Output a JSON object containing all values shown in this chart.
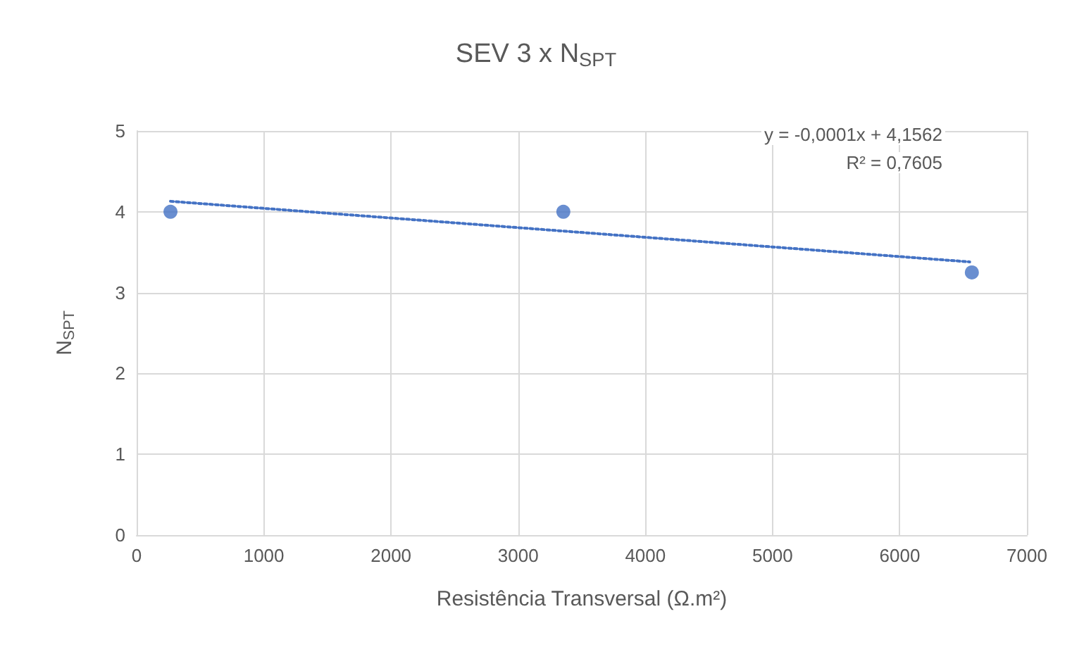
{
  "chart_data": {
    "type": "scatter",
    "title": "SEV 3 x N$_{SPT}$",
    "xlabel": "Resistência Transversal (Ω.m²)",
    "ylabel": "N$_{SPT}$",
    "x": [
      266,
      3355,
      6567
    ],
    "series": [
      {
        "color": "#4472c4",
        "values": [
          4,
          4,
          3.25
        ],
        "marker": "circle"
      },
      {
        "type": "line",
        "color": "#4472c4",
        "x": [
          266,
          6550
        ],
        "values": [
          4.13,
          3.38
        ],
        "line_style": "dotted",
        "marker": "none"
      }
    ],
    "annotations": [
      "y = -0,0001x + 4,1562",
      "R² = 0,7605"
    ],
    "xlim": [
      0,
      7000
    ],
    "xticks": [
      0,
      1000,
      2000,
      3000,
      4000,
      5000,
      6000,
      7000
    ],
    "ylim": [
      0,
      5
    ],
    "yticks": [
      0,
      1,
      2,
      3,
      4,
      5
    ],
    "grid": true
  }
}
